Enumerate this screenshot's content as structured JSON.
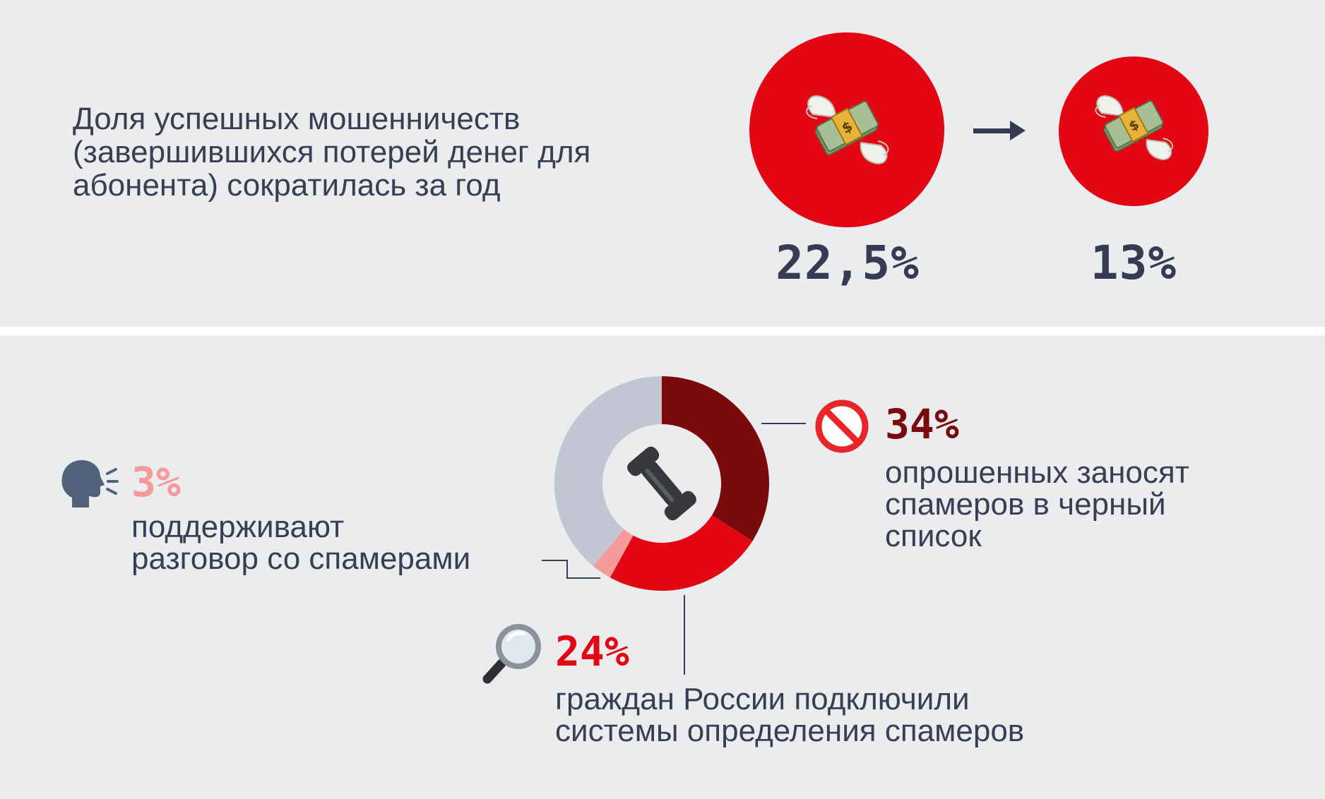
{
  "headline": "Доля успешных мошенничеств (завершившихся потерей денег для абонента) сократилась за год",
  "icons": {
    "money": "money-with-wings-icon",
    "arrow": "arrow-right-icon",
    "donut_center": "telephone-receiver-icon",
    "blacklist": "no-entry-icon",
    "talk": "speaking-head-icon",
    "detect": "magnifying-glass-icon"
  },
  "colors": {
    "background": "#ebecee",
    "red": "#e30613",
    "dark_red": "#7b0a0c",
    "pink": "#f59a9a",
    "gray": "#c3c5d2",
    "text": "#3b3d55"
  },
  "fraud_share": {
    "before": "22,5%",
    "after": "13%"
  },
  "stats": {
    "blacklist": {
      "value": "34%",
      "text": [
        "опрошенных заносят",
        "спамеров в черный",
        "список"
      ]
    },
    "talk": {
      "value": "3%",
      "text": [
        "поддерживают",
        "разговор со спамерами"
      ]
    },
    "detect": {
      "value": "24%",
      "text": [
        "граждан России подключили",
        "системы определения спамеров"
      ]
    }
  },
  "chart_data": [
    {
      "type": "bar",
      "categories": [
        "",
        ""
      ],
      "values": [
        22.5,
        13
      ],
      "value_labels": [
        "22,5%",
        "13%"
      ]
    },
    {
      "type": "pie",
      "donut": true,
      "start": "top",
      "direction": "clockwise",
      "slices": [
        {
          "label": "34%",
          "value": 34,
          "color": "#7b0a0c"
        },
        {
          "label": "24%",
          "value": 24,
          "color": "#e30613"
        },
        {
          "label": "3%",
          "value": 3,
          "color": "#f59a9a"
        },
        {
          "label": "",
          "value": 39,
          "color": "#c3c5d2"
        }
      ]
    }
  ]
}
